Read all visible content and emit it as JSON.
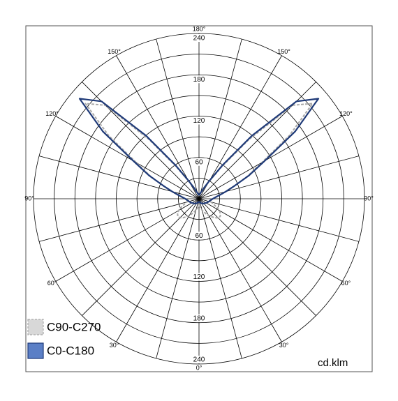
{
  "chart_data": {
    "type": "polar",
    "unit_label": "cd.klm",
    "rlim": [
      0,
      240
    ],
    "rticks": [
      60,
      120,
      180,
      240
    ],
    "angle_ticks": [
      {
        "value": 0,
        "label": "0°"
      },
      {
        "value": 30,
        "label": "30°"
      },
      {
        "value": 60,
        "label": "60°"
      },
      {
        "value": 90,
        "label": "90°"
      },
      {
        "value": 120,
        "label": "120°"
      },
      {
        "value": 150,
        "label": "150°"
      },
      {
        "value": 180,
        "label": "180°"
      }
    ],
    "x": [
      -180,
      -175,
      -170,
      -165,
      -160,
      -155,
      -150,
      -145,
      -140,
      -135,
      -130,
      -125,
      -120,
      -115,
      -110,
      -105,
      -100,
      -95,
      -90,
      -85,
      -80,
      -75,
      -70,
      -65,
      -60,
      -55,
      -50,
      -45,
      -40,
      -35,
      -30,
      -25,
      -20,
      -15,
      -10,
      -5,
      0,
      5,
      10,
      15,
      20,
      25,
      30,
      35,
      40,
      45,
      50,
      55,
      60,
      65,
      70,
      75,
      80,
      85,
      90,
      95,
      100,
      105,
      110,
      115,
      120,
      125,
      130,
      135,
      140,
      145,
      150,
      155,
      160,
      165,
      170,
      175,
      180
    ],
    "series": [
      {
        "name": "C90-C270",
        "color": "#a8a8a8",
        "dashed": true,
        "values": [
          4,
          5,
          6,
          8,
          10,
          16,
          28,
          55,
          112,
          192,
          215,
          160,
          105,
          78,
          55,
          40,
          30,
          24,
          20,
          18,
          17,
          18,
          22,
          28,
          34,
          38,
          40,
          39,
          36,
          32,
          28,
          24,
          20,
          17,
          14,
          12,
          10,
          12,
          14,
          17,
          20,
          24,
          28,
          32,
          36,
          39,
          40,
          38,
          34,
          28,
          22,
          18,
          17,
          18,
          20,
          24,
          30,
          40,
          55,
          78,
          105,
          160,
          215,
          192,
          112,
          55,
          28,
          16,
          10,
          8,
          6,
          5,
          4
        ]
      },
      {
        "name": "C0-C180",
        "color": "#1f3a78",
        "legend_fill": "#5b7fc6",
        "dashed": false,
        "values": [
          5,
          6,
          7,
          9,
          12,
          18,
          30,
          60,
          120,
          200,
          226,
          170,
          110,
          80,
          55,
          40,
          30,
          24,
          20,
          18,
          16,
          15,
          14,
          13,
          12,
          11,
          10,
          10,
          9,
          8,
          8,
          7,
          6,
          6,
          5,
          5,
          5,
          5,
          5,
          6,
          6,
          7,
          8,
          8,
          9,
          10,
          10,
          11,
          12,
          13,
          14,
          15,
          16,
          18,
          20,
          24,
          30,
          40,
          55,
          80,
          110,
          170,
          226,
          200,
          120,
          60,
          30,
          18,
          12,
          9,
          7,
          6,
          5
        ]
      }
    ]
  }
}
